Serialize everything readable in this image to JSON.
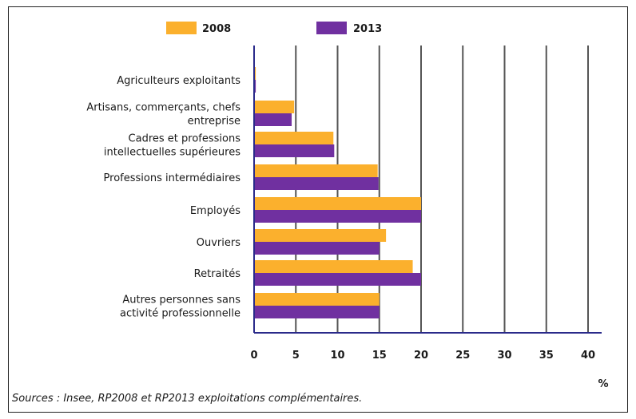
{
  "chart_data": {
    "type": "bar",
    "orientation": "horizontal",
    "categories": [
      [
        "Agriculteurs exploitants"
      ],
      [
        "Artisans, commerçants, chefs",
        "entreprise"
      ],
      [
        "Cadres et professions",
        "intellectuelles supérieures"
      ],
      [
        "Professions intermédiaires"
      ],
      [
        "Employés"
      ],
      [
        "Ouvriers"
      ],
      [
        "Retraités"
      ],
      [
        "Autres personnes sans",
        "activité professionnelle"
      ]
    ],
    "series": [
      {
        "name": "2008",
        "color": "#FBB02D",
        "values": [
          0.2,
          4.8,
          9.5,
          14.8,
          20.0,
          15.8,
          19.0,
          15.0
        ]
      },
      {
        "name": "2013",
        "color": "#7030A0",
        "values": [
          0.2,
          4.5,
          9.6,
          14.9,
          20.0,
          15.0,
          20.0,
          15.0
        ]
      }
    ],
    "xlim": [
      0,
      40
    ],
    "xticks": [
      0,
      5,
      10,
      15,
      20,
      25,
      30,
      35,
      40
    ],
    "xlabel": "%",
    "grid": "vertical",
    "legend": "top",
    "source": "Sources : Insee, RP2008 et RP2013 exploitations complémentaires."
  }
}
